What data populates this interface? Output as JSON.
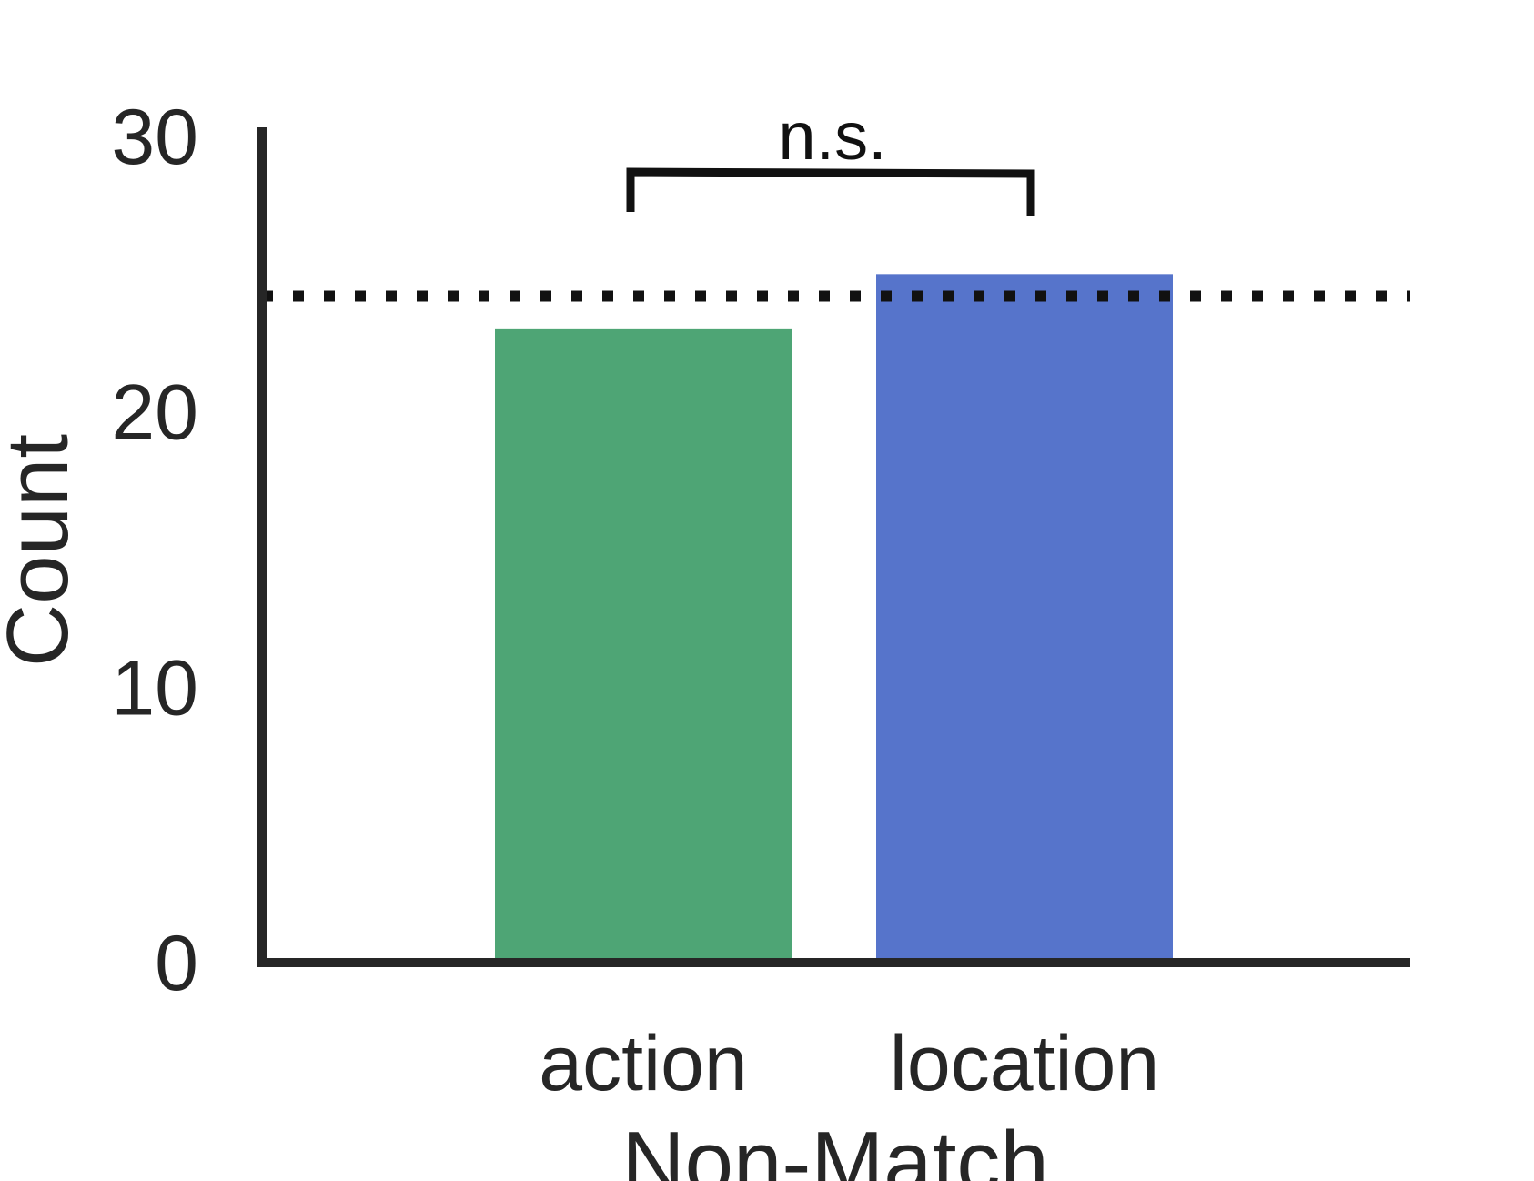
{
  "chart_data": {
    "type": "bar",
    "categories": [
      "action",
      "location"
    ],
    "values": [
      23,
      25
    ],
    "colors": [
      "#4ea575",
      "#5674cb"
    ],
    "xlabel": "Non-Match",
    "ylabel": "Count",
    "ylim": [
      0,
      30
    ],
    "yticks": [
      "0",
      "10",
      "20",
      "30"
    ],
    "reference_line": {
      "value": 24.2,
      "style": "dotted",
      "color": "#111111"
    },
    "annotation": {
      "text": "n.s.",
      "between": [
        "action",
        "location"
      ]
    },
    "grid": false,
    "axis_color": "#262626"
  }
}
